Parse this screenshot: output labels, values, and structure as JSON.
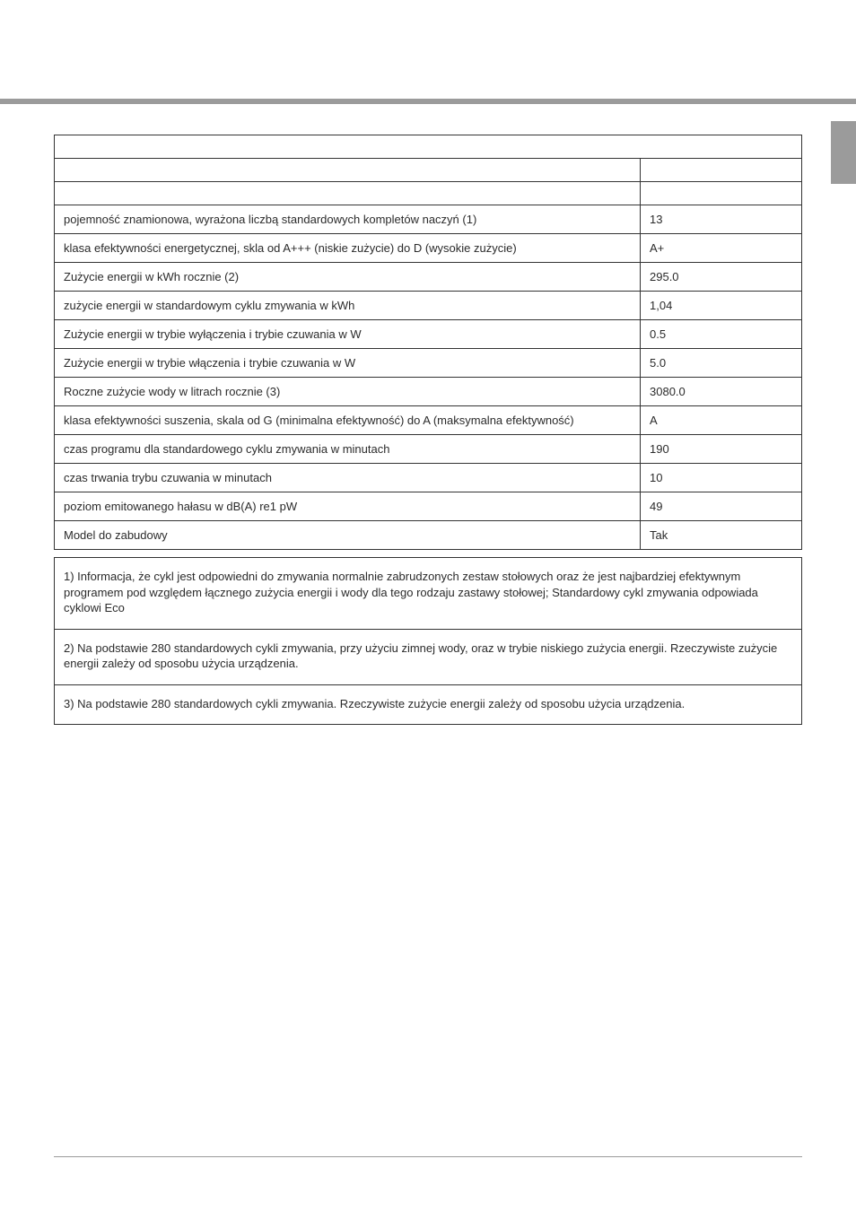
{
  "colors": {
    "bar": "#9b9b9b",
    "border": "#333333",
    "text": "#2b2b2b",
    "background": "#ffffff"
  },
  "typography": {
    "fontFamily": "Arial, Helvetica, sans-serif",
    "fontSize": 13,
    "lineHeight": 1.35
  },
  "layout": {
    "valueColumnWidth": 180
  },
  "table": {
    "headerBlankRows": 3,
    "rows": [
      {
        "label": "pojemność znamionowa, wyrażona liczbą standardowych kompletów naczyń (1)",
        "value": "13"
      },
      {
        "label": "klasa efektywności energetycznej, skla od A+++ (niskie zużycie) do D (wysokie zużycie)",
        "value": "A+"
      },
      {
        "label": "Zużycie  energii w kWh rocznie (2)",
        "value": "295.0"
      },
      {
        "label": "zużycie energii w standardowym cyklu zmywania w kWh",
        "value": "1,04"
      },
      {
        "label": "Zużycie energii w trybie wyłączenia i trybie czuwania w W",
        "value": "0.5"
      },
      {
        "label": "Zużycie energii w trybie włączenia i trybie czuwania w W",
        "value": "5.0"
      },
      {
        "label": "Roczne zużycie wody w litrach rocznie (3)",
        "value": "3080.0"
      },
      {
        "label": "klasa efektywności suszenia, skala od G (minimalna efektywność) do A (maksymalna efektywność)",
        "value": "A"
      },
      {
        "label": "czas programu dla standardowego cyklu zmywania w minutach",
        "value": "190"
      },
      {
        "label": "czas trwania trybu czuwania w minutach",
        "value": "10"
      },
      {
        "label": "poziom emitowanego hałasu w dB(A) re1 pW",
        "value": "49"
      },
      {
        "label": "Model do zabudowy",
        "value": "Tak"
      }
    ]
  },
  "notes": [
    "1) Informacja, że cykl jest odpowiedni do zmywania normalnie zabrudzonych zestaw stołowych oraz że jest najbardziej efektywnym programem pod względem łącznego zużycia energii i wody dla tego rodzaju zastawy stołowej; Standardowy cykl zmywania odpowiada cyklowi Eco",
    "2) Na podstawie 280 standardowych cykli zmywania, przy użyciu zimnej wody, oraz w trybie niskiego zużycia energii. Rzeczywiste zużycie energii zależy od sposobu użycia urządzenia.",
    "3) Na podstawie 280 standardowych cykli zmywania. Rzeczywiste zużycie energii zależy od sposobu użycia urządzenia."
  ]
}
